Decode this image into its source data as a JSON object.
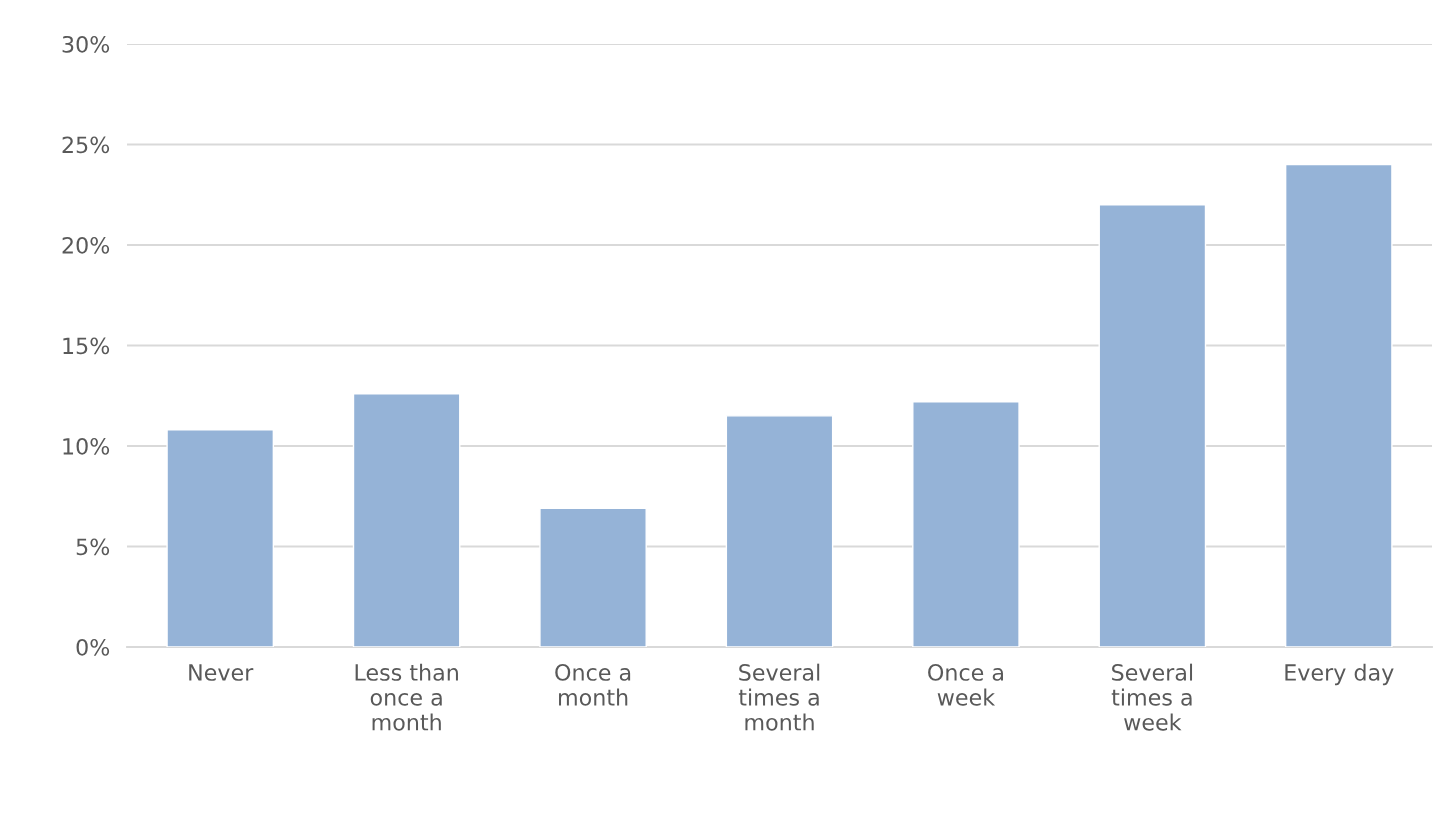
{
  "chart_data": {
    "type": "bar",
    "categories": [
      "Never",
      "Less than\nonce a\nmonth",
      "Once a\nmonth",
      "Several\ntimes a\nmonth",
      "Once a\nweek",
      "Several\ntimes a\nweek",
      "Every day"
    ],
    "values": [
      10.8,
      12.6,
      6.9,
      11.5,
      12.2,
      22.0,
      24.0
    ],
    "color": "#95b3d7",
    "ylim": [
      0,
      30
    ],
    "yticks": [
      {
        "value": 0,
        "label": "0%"
      },
      {
        "value": 5,
        "label": "5%"
      },
      {
        "value": 10,
        "label": "10%"
      },
      {
        "value": 15,
        "label": "15%"
      },
      {
        "value": 20,
        "label": "20%"
      },
      {
        "value": 25,
        "label": "25%"
      },
      {
        "value": 30,
        "label": "30%"
      }
    ],
    "grid": "y",
    "legend": false
  }
}
